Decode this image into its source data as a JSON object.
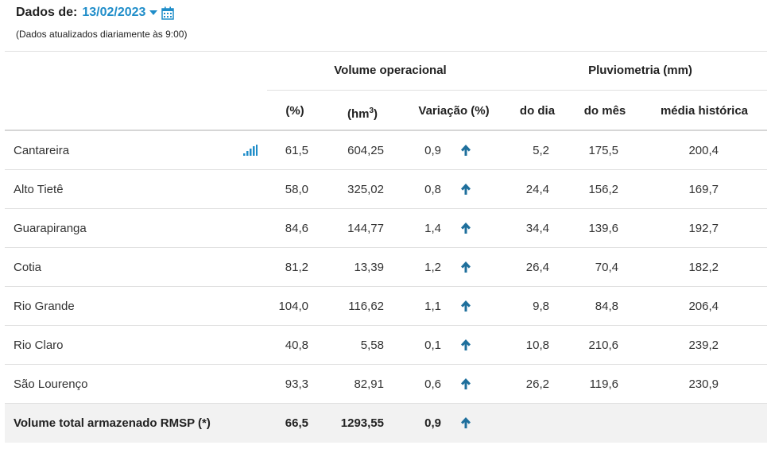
{
  "header": {
    "date_label": "Dados de:",
    "date_value": "13/02/2023",
    "updated_note": "(Dados atualizados diariamente às 9:00)"
  },
  "table": {
    "group_volume": "Volume operacional",
    "group_pluvio": "Pluviometria (mm)",
    "col_percent": "(%)",
    "col_hm3": "(hm",
    "col_hm3_sup": "3",
    "col_hm3_close": ")",
    "col_variacao": "Variação (%)",
    "col_dia": "do dia",
    "col_mes": "do mês",
    "col_media": "média histórica",
    "rows": [
      {
        "name": "Cantareira",
        "percent": "61,5",
        "hm3": "604,25",
        "variacao": "0,9",
        "trend": "up-arrow-icon",
        "dia": "5,2",
        "mes": "175,5",
        "media": "200,4"
      },
      {
        "name": "Alto Tietê",
        "percent": "58,0",
        "hm3": "325,02",
        "variacao": "0,8",
        "trend": "up-arrow-icon",
        "dia": "24,4",
        "mes": "156,2",
        "media": "169,7"
      },
      {
        "name": "Guarapiranga",
        "percent": "84,6",
        "hm3": "144,77",
        "variacao": "1,4",
        "trend": "up-arrow-icon",
        "dia": "34,4",
        "mes": "139,6",
        "media": "192,7"
      },
      {
        "name": "Cotia",
        "percent": "81,2",
        "hm3": "13,39",
        "variacao": "1,2",
        "trend": "up-arrow-icon",
        "dia": "26,4",
        "mes": "70,4",
        "media": "182,2"
      },
      {
        "name": "Rio Grande",
        "percent": "104,0",
        "hm3": "116,62",
        "variacao": "1,1",
        "trend": "up-arrow-icon",
        "dia": "9,8",
        "mes": "84,8",
        "media": "206,4"
      },
      {
        "name": "Rio Claro",
        "percent": "40,8",
        "hm3": "5,58",
        "variacao": "0,1",
        "trend": "up-arrow-icon",
        "dia": "10,8",
        "mes": "210,6",
        "media": "239,2"
      },
      {
        "name": "São Lourenço",
        "percent": "93,3",
        "hm3": "82,91",
        "variacao": "0,6",
        "trend": "up-arrow-icon",
        "dia": "26,2",
        "mes": "119,6",
        "media": "230,9"
      }
    ],
    "total": {
      "name": "Volume total armazenado RMSP (*)",
      "percent": "66,5",
      "hm3": "1293,55",
      "variacao": "0,9",
      "trend": "up-arrow-icon"
    }
  },
  "colors": {
    "accent": "#1f8dc9",
    "arrow": "#1e6f9c",
    "total_bg": "#f2f2f2"
  }
}
